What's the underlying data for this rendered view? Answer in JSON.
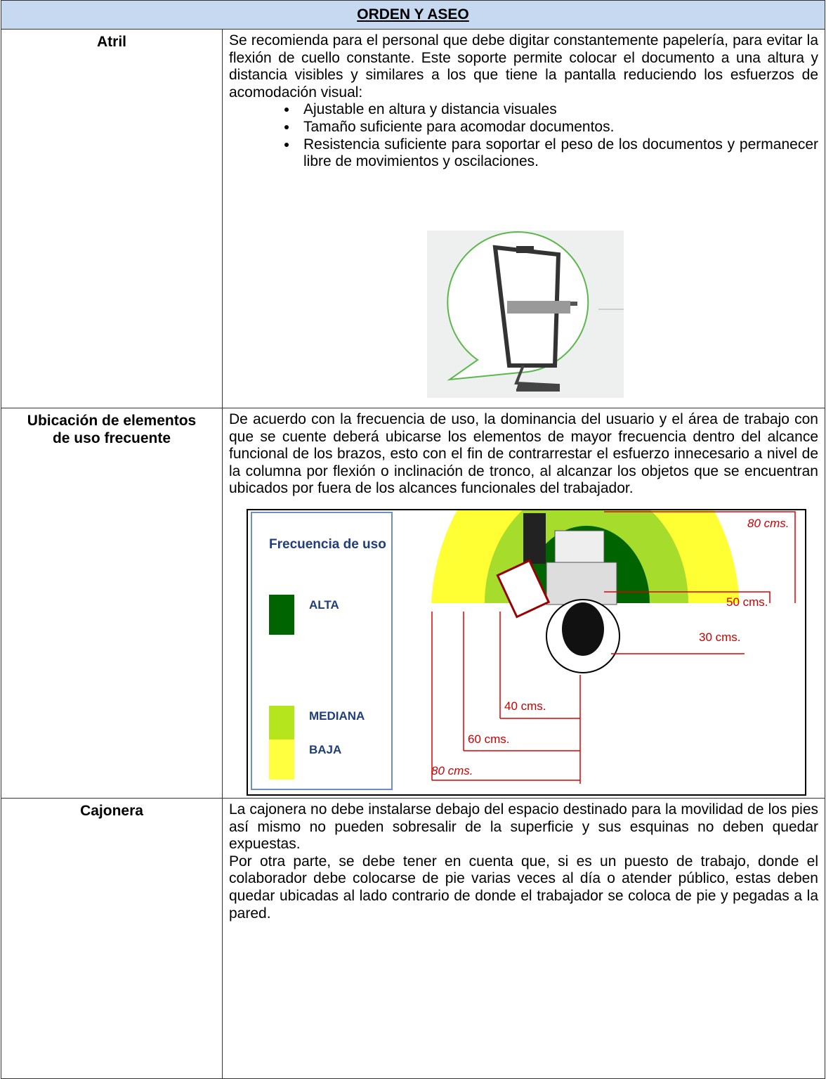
{
  "header": {
    "title": "ORDEN Y ASEO"
  },
  "rows": [
    {
      "label": "Atril",
      "text": "Se recomienda para el personal que debe digitar constantemente papelería, para evitar la flexión de cuello constante. Este soporte permite colocar el documento a una altura y distancia visibles y similares a los que tiene la pantalla reduciendo los esfuerzos de acomodación visual:",
      "bullets": [
        "Ajustable en altura y distancia visuales",
        "Tamaño suficiente para acomodar documentos.",
        "Resistencia suficiente para soportar el peso de los documentos y permanecer libre de movimientos y oscilaciones."
      ]
    },
    {
      "label": "Ubicación de elementos de uso frecuente",
      "text": "De acuerdo con la frecuencia de uso, la dominancia del usuario y el área de trabajo con que se cuente deberá ubicarse los elementos de mayor frecuencia dentro del alcance funcional de los brazos, esto con el fin de contrarrestar el esfuerzo innecesario a nivel de la columna por flexión o inclinación de tronco, al alcanzar los objetos que se encuentran ubicados por fuera de los alcances funcionales del trabajador.",
      "figure": {
        "legend_title": "Frecuencia de uso",
        "legend": [
          "ALTA",
          "MEDIANA",
          "BAJA"
        ],
        "distances": [
          "80 cms.",
          "50 cms.",
          "30 cms.",
          "40 cms.",
          "60 cms.",
          "80 cms."
        ]
      }
    },
    {
      "label": "Cajonera",
      "paragraphs": [
        "La cajonera no debe instalarse debajo del espacio destinado para la movilidad de los pies así mismo no pueden sobresalir de la superficie y sus esquinas no deben quedar expuestas.",
        "Por otra parte, se debe tener en cuenta que, si es un puesto de trabajo, donde el colaborador debe colocarse de pie varias veces al día o atender público, estas deben quedar ubicadas al lado contrario de donde el trabajador se coloca de pie  y pegadas a la pared."
      ]
    }
  ]
}
